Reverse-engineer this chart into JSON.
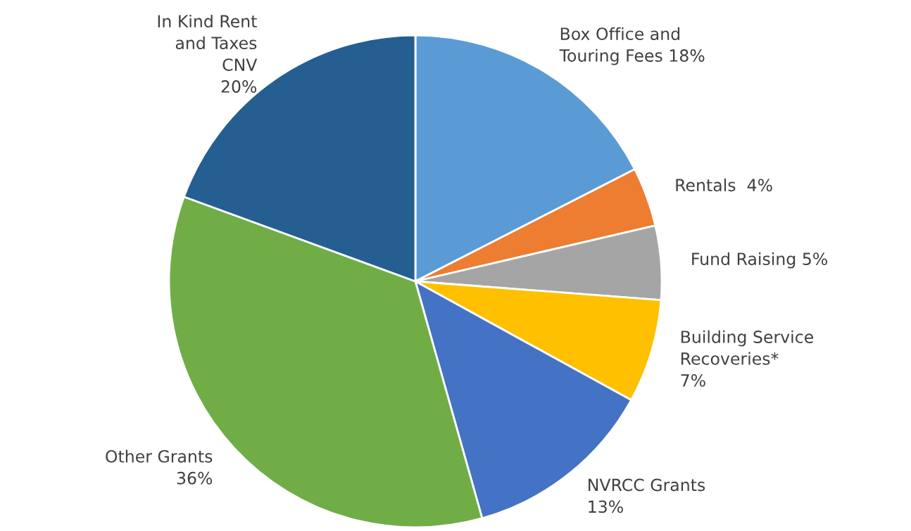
{
  "chart_data": {
    "type": "pie",
    "categories": [
      "Box Office and\nTouring Fees",
      "Rentals",
      "Fund Raising",
      "Building Service\nRecoveries*",
      "NVRCC Grants",
      "Other Grants",
      "In Kind Rent\nand Taxes\nCNV"
    ],
    "values": [
      18,
      4,
      5,
      7,
      13,
      36,
      20
    ],
    "value_labels": [
      " 18%",
      "  4%",
      " 5%",
      "\n7%",
      "\n13%",
      "\n36%",
      "\n20%"
    ],
    "colors": [
      "#5b9bd5",
      "#ed7d31",
      "#a5a5a5",
      "#ffc000",
      "#4472c4",
      "#70ad47",
      "#255e91"
    ],
    "legend": false
  }
}
